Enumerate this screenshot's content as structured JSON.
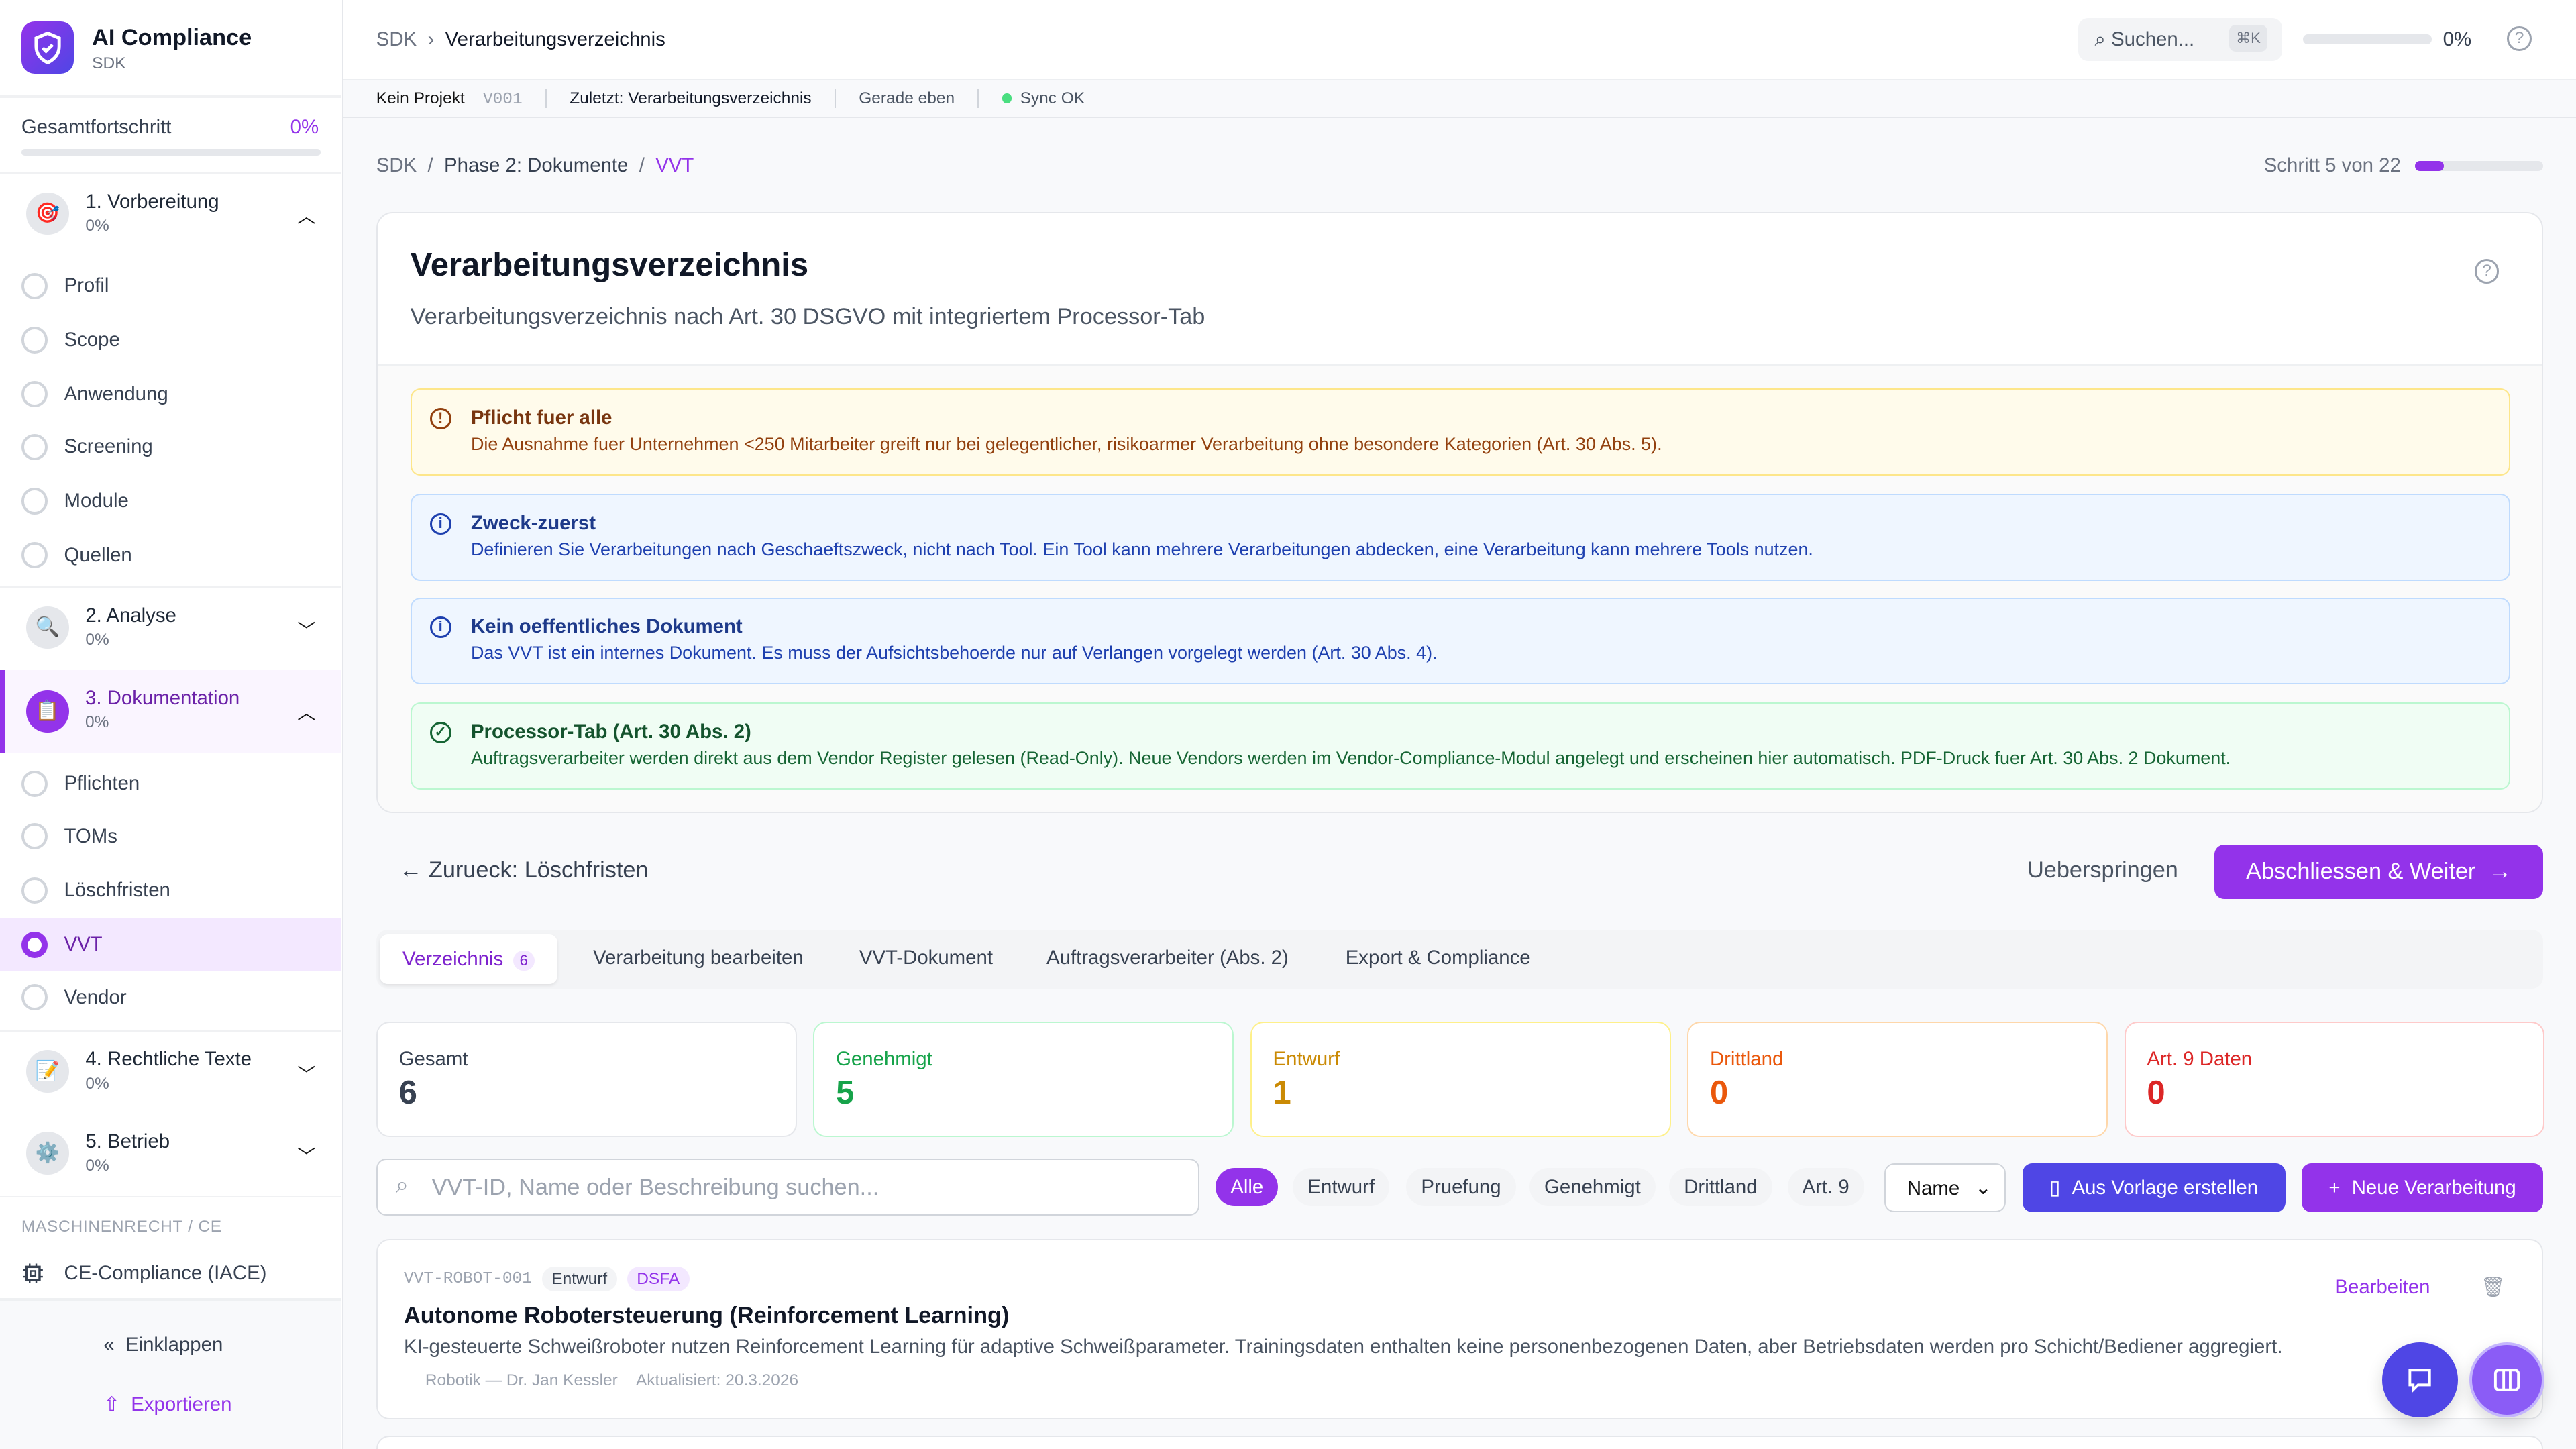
{
  "app": {
    "title": "AI Compliance",
    "subtitle": "SDK"
  },
  "sidebar": {
    "progress_label": "Gesamtfortschritt",
    "progress_value": "0%",
    "progress_fraction": 0,
    "sections": [
      {
        "label": "1. Vorbereitung",
        "percent": "0%",
        "icon": "target-icon",
        "expanded": true,
        "items": [
          "Profil",
          "Scope",
          "Anwendung",
          "Screening",
          "Module",
          "Quellen"
        ]
      },
      {
        "label": "2. Analyse",
        "percent": "0%",
        "icon": "magnifier-icon",
        "expanded": false
      },
      {
        "label": "3. Dokumentation",
        "percent": "0%",
        "icon": "clipboard-icon",
        "expanded": true,
        "active": true,
        "items": [
          "Pflichten",
          "TOMs",
          "Löschfristen",
          "VVT",
          "Vendor"
        ],
        "selected": "VVT"
      },
      {
        "label": "4. Rechtliche Texte",
        "percent": "0%",
        "icon": "memo-icon",
        "expanded": false
      },
      {
        "label": "5. Betrieb",
        "percent": "0%",
        "icon": "gear-icon",
        "expanded": false
      }
    ],
    "group_heading": "MASCHINENRECHT / CE",
    "ce_item": "CE-Compliance (IACE)",
    "collapse_label": "Einklappen",
    "export_label": "Exportieren"
  },
  "header": {
    "crumb_root": "SDK",
    "crumb_current": "Verarbeitungsverzeichnis",
    "search_placeholder": "Suchen...",
    "search_shortcut": "⌘K",
    "progress_value": "0%",
    "progress_fraction": 0
  },
  "statusbar": {
    "project": "Kein Projekt",
    "version": "V001",
    "last": "Zuletzt: Verarbeitungsverzeichnis",
    "time": "Gerade eben",
    "sync": "Sync OK"
  },
  "breadcrumb": {
    "items": [
      "SDK",
      "Phase 2: Dokumente",
      "VVT"
    ]
  },
  "step": {
    "label": "Schritt 5 von 22",
    "current": 5,
    "total": 22
  },
  "page": {
    "title": "Verarbeitungsverzeichnis",
    "description": "Verarbeitungsverzeichnis nach Art. 30 DSGVO mit integriertem Processor-Tab"
  },
  "alerts": [
    {
      "type": "warning",
      "title": "Pflicht fuer alle",
      "text": "Die Ausnahme fuer Unternehmen <250 Mitarbeiter greift nur bei gelegentlicher, risikoarmer Verarbeitung ohne besondere Kategorien (Art. 30 Abs. 5)."
    },
    {
      "type": "info",
      "title": "Zweck-zuerst",
      "text": "Definieren Sie Verarbeitungen nach Geschaeftszweck, nicht nach Tool. Ein Tool kann mehrere Verarbeitungen abdecken, eine Verarbeitung kann mehrere Tools nutzen."
    },
    {
      "type": "info",
      "title": "Kein oeffentliches Dokument",
      "text": "Das VVT ist ein internes Dokument. Es muss der Aufsichtsbehoerde nur auf Verlangen vorgelegt werden (Art. 30 Abs. 4)."
    },
    {
      "type": "success",
      "title": "Processor-Tab (Art. 30 Abs. 2)",
      "text": "Auftragsverarbeiter werden direkt aus dem Vendor Register gelesen (Read-Only). Neue Vendors werden im Vendor-Compliance-Modul angelegt und erscheinen hier automatisch. PDF-Druck fuer Art. 30 Abs. 2 Dokument."
    }
  ],
  "nav": {
    "back": "Zurueck: Löschfristen",
    "skip": "Ueberspringen",
    "next": "Abschliessen & Weiter"
  },
  "tabs": [
    {
      "label": "Verzeichnis",
      "count": "6",
      "active": true
    },
    {
      "label": "Verarbeitung bearbeiten"
    },
    {
      "label": "VVT-Dokument"
    },
    {
      "label": "Auftragsverarbeiter (Abs. 2)"
    },
    {
      "label": "Export & Compliance"
    }
  ],
  "stats": [
    {
      "label": "Gesamt",
      "value": "6",
      "color": "#374151",
      "border": "#e5e7eb"
    },
    {
      "label": "Genehmigt",
      "value": "5",
      "color": "#16a34a",
      "border": "#bbf7d0"
    },
    {
      "label": "Entwurf",
      "value": "1",
      "color": "#ca8a04",
      "border": "#fef08a"
    },
    {
      "label": "Drittland",
      "value": "0",
      "color": "#ea580c",
      "border": "#fed7aa"
    },
    {
      "label": "Art. 9 Daten",
      "value": "0",
      "color": "#dc2626",
      "border": "#fecaca"
    }
  ],
  "filters": {
    "search_placeholder": "VVT-ID, Name oder Beschreibung suchen...",
    "chips": [
      "Alle",
      "Entwurf",
      "Pruefung",
      "Genehmigt",
      "Drittland",
      "Art. 9"
    ],
    "active_chip": "Alle",
    "sort": "Name",
    "template_button": "Aus Vorlage erstellen",
    "new_button": "Neue Verarbeitung"
  },
  "entries": [
    {
      "id": "VVT-ROBOT-001",
      "status": "Entwurf",
      "tag": "DSFA",
      "title": "Autonome Robotersteuerung (Reinforcement Learning)",
      "description": "KI-gesteuerte Schweißroboter nutzen Reinforcement Learning für adaptive Schweißparameter. Trainingsdaten enthalten keine personenbezogenen Daten, aber Betriebsdaten werden pro Schicht/Bediener aggregiert.",
      "owner": "Robotik — Dr. Jan Kessler",
      "updated": "Aktualisiert: 20.3.2026",
      "edit": "Bearbeiten"
    }
  ],
  "colors": {
    "accent": "#9333ea",
    "indigo": "#4f46e5"
  }
}
